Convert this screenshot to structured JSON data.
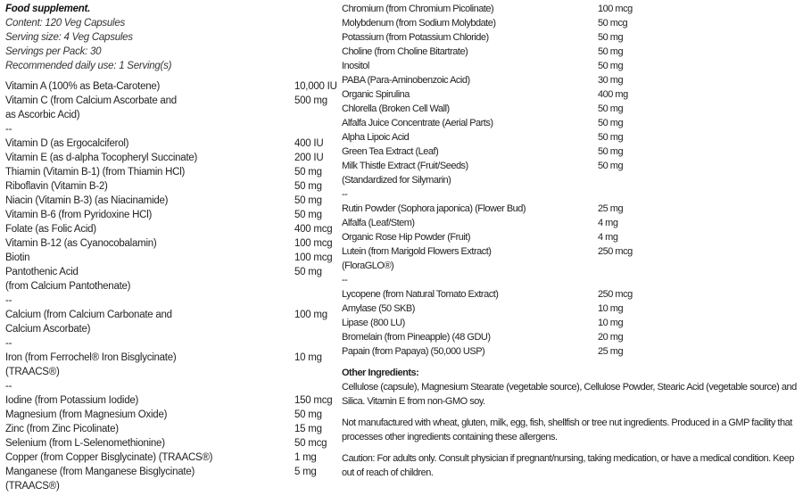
{
  "header": {
    "title": "Food supplement.",
    "lines": [
      "Content: 120 Veg Capsules",
      "Serving size: 4 Veg Capsules",
      "Servings per Pack: 30",
      "Recommended daily use: 1 Serving(s)"
    ]
  },
  "left_rows": [
    {
      "name": [
        "Vitamin A (100% as Beta-Carotene)"
      ],
      "amount": "10,000 IU"
    },
    {
      "name": [
        "Vitamin C (from Calcium Ascorbate and",
        "as Ascorbic Acid)"
      ],
      "amount": "500 mg"
    },
    {
      "name": [
        "--"
      ],
      "amount": ""
    },
    {
      "name": [
        "Vitamin D (as Ergocalciferol)"
      ],
      "amount": "400 IU"
    },
    {
      "name": [
        "Vitamin E (as d-alpha Tocopheryl Succinate)"
      ],
      "amount": "200 IU"
    },
    {
      "name": [
        "Thiamin (Vitamin B-1) (from Thiamin HCl)"
      ],
      "amount": "50 mg"
    },
    {
      "name": [
        "Riboflavin (Vitamin B-2)"
      ],
      "amount": "50 mg"
    },
    {
      "name": [
        "Niacin (Vitamin B-3) (as Niacinamide)"
      ],
      "amount": "50 mg"
    },
    {
      "name": [
        "Vitamin B-6 (from Pyridoxine HCl)"
      ],
      "amount": "50 mg"
    },
    {
      "name": [
        "Folate (as Folic Acid)"
      ],
      "amount": "400 mcg"
    },
    {
      "name": [
        "Vitamin B-12 (as Cyanocobalamin)"
      ],
      "amount": "100 mcg"
    },
    {
      "name": [
        "Biotin"
      ],
      "amount": "100 mcg"
    },
    {
      "name": [
        "Pantothenic Acid",
        "(from Calcium Pantothenate)"
      ],
      "amount": "50 mg"
    },
    {
      "name": [
        "--"
      ],
      "amount": ""
    },
    {
      "name": [
        "Calcium (from Calcium Carbonate and",
        "Calcium Ascorbate)"
      ],
      "amount": "100 mg"
    },
    {
      "name": [
        "--"
      ],
      "amount": ""
    },
    {
      "name": [
        "Iron (from Ferrochel® Iron Bisglycinate)",
        "(TRAACS®)"
      ],
      "amount": "10 mg"
    },
    {
      "name": [
        "--"
      ],
      "amount": ""
    },
    {
      "name": [
        "Iodine (from Potassium Iodide)"
      ],
      "amount": "150 mcg"
    },
    {
      "name": [
        "Magnesium (from Magnesium Oxide)"
      ],
      "amount": "50 mg"
    },
    {
      "name": [
        "Zinc (from Zinc Picolinate)"
      ],
      "amount": "15 mg"
    },
    {
      "name": [
        "Selenium (from L-Selenomethionine)"
      ],
      "amount": "50 mcg"
    },
    {
      "name": [
        "Copper (from Copper Bisglycinate) (TRAACS®)"
      ],
      "amount": "1 mg"
    },
    {
      "name": [
        "Manganese (from Manganese Bisglycinate)",
        "(TRAACS®)"
      ],
      "amount": "5 mg"
    }
  ],
  "right_rows": [
    {
      "name": [
        "Chromium (from Chromium Picolinate)"
      ],
      "amount": "100 mcg"
    },
    {
      "name": [
        "Molybdenum (from Sodium Molybdate)"
      ],
      "amount": "50 mcg"
    },
    {
      "name": [
        "Potassium (from Potassium Chloride)"
      ],
      "amount": "50 mg"
    },
    {
      "name": [
        "Choline (from Choline Bitartrate)"
      ],
      "amount": "50 mg"
    },
    {
      "name": [
        "Inositol"
      ],
      "amount": "50 mg"
    },
    {
      "name": [
        "PABA (Para-Aminobenzoic Acid)"
      ],
      "amount": "30 mg"
    },
    {
      "name": [
        "Organic Spirulina"
      ],
      "amount": "400 mg"
    },
    {
      "name": [
        "Chlorella (Broken Cell Wall)"
      ],
      "amount": "50 mg"
    },
    {
      "name": [
        "Alfalfa Juice Concentrate (Aerial Parts)"
      ],
      "amount": "50 mg"
    },
    {
      "name": [
        "Alpha Lipoic Acid"
      ],
      "amount": "50 mg"
    },
    {
      "name": [
        "Green Tea Extract (Leaf)"
      ],
      "amount": "50 mg"
    },
    {
      "name": [
        "Milk Thistle Extract (Fruit/Seeds)",
        "(Standardized for Silymarin)"
      ],
      "amount": "50 mg"
    },
    {
      "name": [
        "--"
      ],
      "amount": ""
    },
    {
      "name": [
        "Rutin Powder (Sophora japonica) (Flower Bud)"
      ],
      "amount": "25 mg"
    },
    {
      "name": [
        "Alfalfa (Leaf/Stem)"
      ],
      "amount": "4 mg"
    },
    {
      "name": [
        "Organic Rose Hip Powder (Fruit)"
      ],
      "amount": "4 mg"
    },
    {
      "name": [
        "Lutein (from Marigold Flowers Extract)",
        "(FloraGLO®)"
      ],
      "amount": "250 mcg"
    },
    {
      "name": [
        "--"
      ],
      "amount": ""
    },
    {
      "name": [
        "Lycopene (from Natural Tomato Extract)"
      ],
      "amount": "250 mcg"
    },
    {
      "name": [
        "Amylase (50 SKB)"
      ],
      "amount": "10 mg"
    },
    {
      "name": [
        "Lipase (800 LU)"
      ],
      "amount": "10 mg"
    },
    {
      "name": [
        "Bromelain (from Pineapple) (48 GDU)"
      ],
      "amount": "20 mg"
    },
    {
      "name": [
        "Papain (from Papaya) (50,000 USP)"
      ],
      "amount": "25 mg"
    }
  ],
  "other": {
    "title": "Other Ingredients:",
    "paragraphs": [
      "Cellulose (capsule), Magnesium Stearate (vegetable source), Cellulose Powder, Stearic Acid (vegetable source) and Silica. Vitamin E from non-GMO soy.",
      "Not manufactured with wheat, gluten, milk, egg, fish, shellfish or tree nut ingredients. Produced in a GMP facility that processes other ingredients containing these allergens.",
      "Caution: For adults only. Consult physician if pregnant/nursing, taking medication, or have a medical condition. Keep out of reach of children."
    ]
  }
}
